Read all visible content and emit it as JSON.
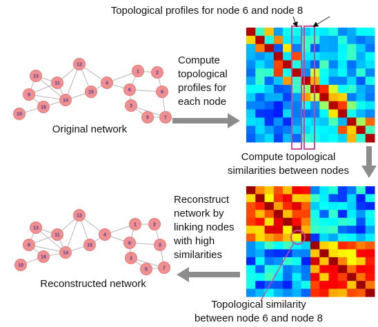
{
  "top_annotation": "Topological profiles for node 6 and node 8",
  "step_profiles": [
    "Compute",
    "topological",
    "profiles for",
    "each node"
  ],
  "step_similarities": [
    "Compute topological",
    "similarities between nodes"
  ],
  "step_reconstruct": [
    "Reconstruct",
    "network by",
    "linking nodes",
    "with high",
    "similarities"
  ],
  "bottom_annotation": [
    "Topological similarity",
    "between node 6 and node 8"
  ],
  "original_network": {
    "label": "Original network",
    "nodes": [
      "12",
      "13",
      "11",
      "9",
      "16",
      "10",
      "14",
      "15",
      "4",
      "1",
      "2",
      "6",
      "8",
      "3",
      "5",
      "7"
    ]
  },
  "reconstructed_network": {
    "label": "Reconstructed network",
    "nodes": [
      "12",
      "13",
      "11",
      "9",
      "16",
      "10",
      "14",
      "15",
      "4",
      "1",
      "2",
      "6",
      "8",
      "3",
      "5",
      "7"
    ]
  }
}
